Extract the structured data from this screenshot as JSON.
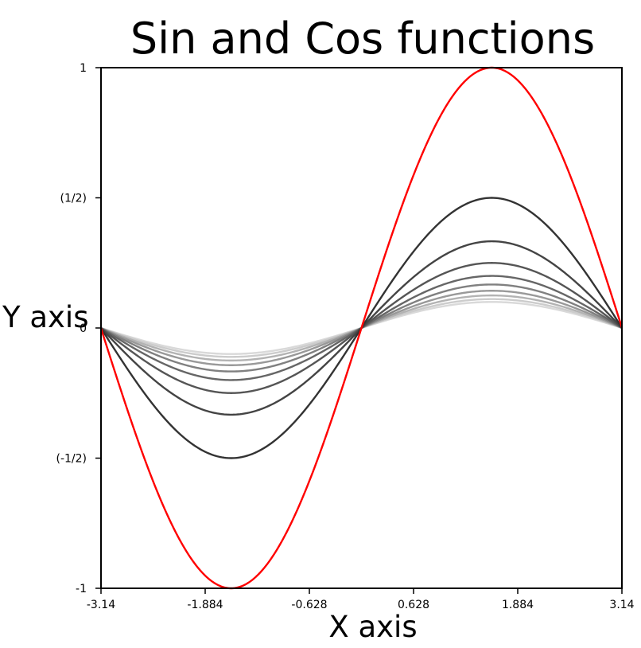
{
  "chart_data": {
    "type": "line",
    "title": "Sin and Cos functions",
    "xlabel": "X axis",
    "ylabel": "Y axis",
    "xlim": [
      -3.14,
      3.14
    ],
    "ylim": [
      -1,
      1
    ],
    "x_ticks": [
      {
        "value": -3.14,
        "label": "-3.14"
      },
      {
        "value": -1.884,
        "label": "-1.884"
      },
      {
        "value": -0.628,
        "label": "-0.628"
      },
      {
        "value": 0.628,
        "label": "0.628"
      },
      {
        "value": 1.884,
        "label": "1.884"
      },
      {
        "value": 3.14,
        "label": "3.14"
      }
    ],
    "y_ticks": [
      {
        "value": -1,
        "label": "-1"
      },
      {
        "value": -0.5,
        "label": "(-1/2)"
      },
      {
        "value": 0,
        "label": "0"
      },
      {
        "value": 0.5,
        "label": "(1/2)"
      },
      {
        "value": 1,
        "label": "1"
      }
    ],
    "grid": false,
    "series": [
      {
        "function": "sin",
        "amplitude": 1,
        "color": "#ff0000"
      },
      {
        "function": "sin",
        "amplitude": 0.5,
        "color": "#333333"
      },
      {
        "function": "sin",
        "amplitude": 0.333,
        "color": "#444444"
      },
      {
        "function": "sin",
        "amplitude": 0.25,
        "color": "#555555"
      },
      {
        "function": "sin",
        "amplitude": 0.2,
        "color": "#666666"
      },
      {
        "function": "sin",
        "amplitude": 0.167,
        "color": "#808080"
      },
      {
        "function": "sin",
        "amplitude": 0.143,
        "color": "#999999"
      },
      {
        "function": "sin",
        "amplitude": 0.125,
        "color": "#b3b3b3"
      },
      {
        "function": "sin",
        "amplitude": 0.111,
        "color": "#cccccc"
      },
      {
        "function": "sin",
        "amplitude": 0.1,
        "color": "#d9d9d9"
      }
    ]
  }
}
